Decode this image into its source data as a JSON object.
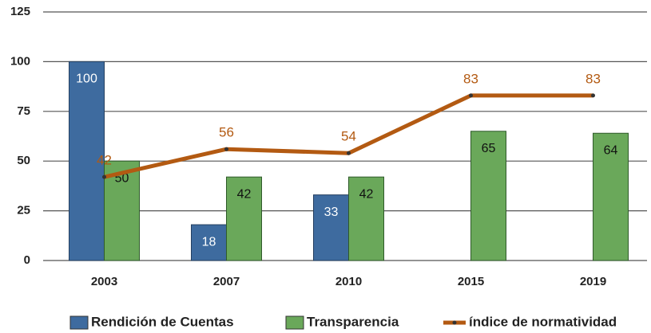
{
  "chart_data": {
    "type": "bar",
    "categories": [
      "2003",
      "2007",
      "2010",
      "2015",
      "2019"
    ],
    "series": [
      {
        "name": "Rendición de Cuentas",
        "color": "#3e6b9f",
        "type": "bar",
        "values": [
          100,
          18,
          33,
          null,
          null
        ]
      },
      {
        "name": "Transparencia",
        "color": "#6aa85a",
        "type": "bar",
        "values": [
          50,
          42,
          42,
          65,
          64
        ]
      },
      {
        "name": "índice de normatividad",
        "color": "#b35a12",
        "type": "line",
        "values": [
          42,
          56,
          54,
          83,
          83
        ]
      }
    ],
    "ylim": [
      0,
      125
    ],
    "yticks": [
      0,
      25,
      50,
      75,
      100,
      125
    ],
    "grid": true,
    "legend": "bottom"
  }
}
